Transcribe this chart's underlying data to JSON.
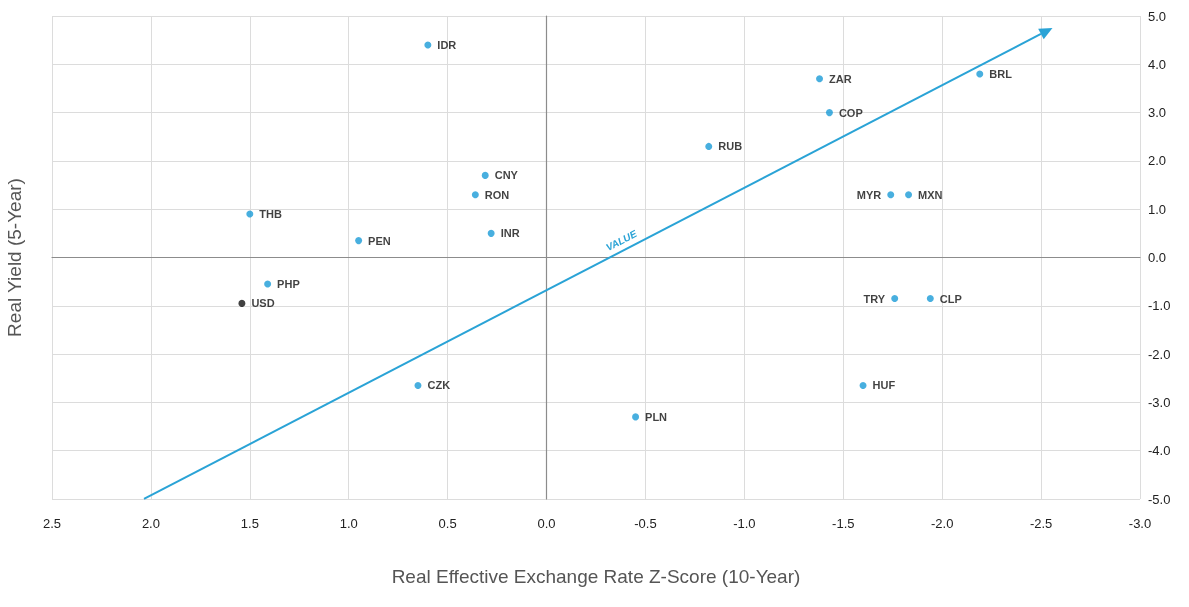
{
  "chart_data": {
    "type": "scatter",
    "xlabel": "Real Effective Exchange Rate Z-Score (10-Year)",
    "ylabel": "Real Yield (5-Year)",
    "xlim": [
      2.5,
      -3.0
    ],
    "xticks": [
      {
        "value": 2.5,
        "label": "2.5"
      },
      {
        "value": 2,
        "label": "2.0"
      },
      {
        "value": 1.5,
        "label": "1.5"
      },
      {
        "value": 1,
        "label": "1.0"
      },
      {
        "value": 0.5,
        "label": "0.5"
      },
      {
        "value": 0,
        "label": "0.0"
      },
      {
        "value": -0.5,
        "label": "-0.5"
      },
      {
        "value": -1,
        "label": "-1.0"
      },
      {
        "value": -1.5,
        "label": "-1.5"
      },
      {
        "value": -2,
        "label": "-2.0"
      },
      {
        "value": -2.5,
        "label": "-2.5"
      },
      {
        "value": -3,
        "label": "-3.0"
      }
    ],
    "ylim": [
      -5.0,
      5.0
    ],
    "yticks": [
      {
        "value": -5,
        "label": "-5.0"
      },
      {
        "value": -4,
        "label": "-4.0"
      },
      {
        "value": -3,
        "label": "-3.0"
      },
      {
        "value": -2,
        "label": "-2.0"
      },
      {
        "value": -1,
        "label": "-1.0"
      },
      {
        "value": 0,
        "label": "0.0"
      },
      {
        "value": 1,
        "label": "1.0"
      },
      {
        "value": 2,
        "label": "2.0"
      },
      {
        "value": 3,
        "label": "3.0"
      },
      {
        "value": 4,
        "label": "4.0"
      },
      {
        "value": 5,
        "label": "5.0"
      }
    ],
    "grid": true,
    "marker": "circle",
    "legend": false,
    "annotations": [
      "VALUE"
    ],
    "series": [
      {
        "name": "IDR",
        "color": "#1a9bd7",
        "x": [
          0.6
        ],
        "values": [
          4.4
        ]
      },
      {
        "name": "ZAR",
        "color": "#1a9bd7",
        "x": [
          -1.38
        ],
        "values": [
          3.7
        ]
      },
      {
        "name": "BRL",
        "color": "#1a9bd7",
        "x": [
          -2.19
        ],
        "values": [
          3.8
        ]
      },
      {
        "name": "COP",
        "color": "#1a9bd7",
        "x": [
          -1.43
        ],
        "values": [
          3.0
        ]
      },
      {
        "name": "RUB",
        "color": "#1a9bd7",
        "x": [
          -0.82
        ],
        "values": [
          2.3
        ]
      },
      {
        "name": "CNY",
        "color": "#1a9bd7",
        "x": [
          0.31
        ],
        "values": [
          1.7
        ]
      },
      {
        "name": "RON",
        "color": "#1a9bd7",
        "x": [
          0.36
        ],
        "values": [
          1.3
        ]
      },
      {
        "name": "MYR",
        "color": "#1a9bd7",
        "x": [
          -1.74
        ],
        "values": [
          1.3
        ]
      },
      {
        "name": "MXN",
        "color": "#1a9bd7",
        "x": [
          -1.83
        ],
        "values": [
          1.3
        ]
      },
      {
        "name": "THB",
        "color": "#1a9bd7",
        "x": [
          1.5
        ],
        "values": [
          0.9
        ]
      },
      {
        "name": "PEN",
        "color": "#1a9bd7",
        "x": [
          0.95
        ],
        "values": [
          0.35
        ]
      },
      {
        "name": "INR",
        "color": "#1a9bd7",
        "x": [
          0.28
        ],
        "values": [
          0.5
        ]
      },
      {
        "name": "PHP",
        "color": "#1a9bd7",
        "x": [
          1.41
        ],
        "values": [
          -0.55
        ]
      },
      {
        "name": "USD",
        "color": "#111111",
        "x": [
          1.54
        ],
        "values": [
          -0.95
        ]
      },
      {
        "name": "TRY",
        "color": "#1a9bd7",
        "x": [
          -1.76
        ],
        "values": [
          -0.85
        ]
      },
      {
        "name": "CLP",
        "color": "#1a9bd7",
        "x": [
          -1.94
        ],
        "values": [
          -0.85
        ]
      },
      {
        "name": "CZK",
        "color": "#1a9bd7",
        "x": [
          0.65
        ],
        "values": [
          -2.65
        ]
      },
      {
        "name": "HUF",
        "color": "#1a9bd7",
        "x": [
          -1.6
        ],
        "values": [
          -2.65
        ]
      },
      {
        "name": "PLN",
        "color": "#1a9bd7",
        "x": [
          -0.45
        ],
        "values": [
          -3.3
        ]
      }
    ]
  }
}
